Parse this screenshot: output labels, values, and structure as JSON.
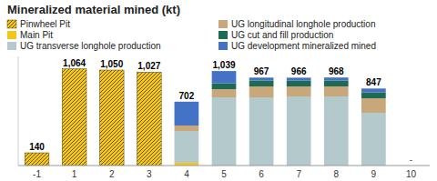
{
  "chart_data": {
    "type": "bar",
    "stacked": true,
    "title": "Mineralized material mined (kt)",
    "categories": [
      "-1",
      "1",
      "2",
      "3",
      "4",
      "5",
      "6",
      "7",
      "8",
      "9",
      "10"
    ],
    "series": [
      {
        "name": "Pinwheel Pit",
        "color": "#f5c518",
        "marker": "hatch",
        "values": [
          140,
          1064,
          1050,
          1027,
          0,
          0,
          0,
          0,
          0,
          0,
          0
        ]
      },
      {
        "name": "Main Pit",
        "color": "#f5c518",
        "values": [
          0,
          0,
          0,
          0,
          30,
          0,
          0,
          0,
          0,
          0,
          0
        ]
      },
      {
        "name": "UG transverse longhole production",
        "color": "#b3c9cc",
        "values": [
          0,
          0,
          0,
          0,
          350,
          750,
          750,
          760,
          760,
          580,
          0
        ]
      },
      {
        "name": "UG longitudinal longhole production",
        "color": "#c8a87a",
        "values": [
          0,
          0,
          0,
          0,
          60,
          90,
          120,
          110,
          110,
          160,
          0
        ]
      },
      {
        "name": "UG cut and fill production",
        "color": "#1e6b55",
        "values": [
          0,
          0,
          0,
          0,
          0,
          65,
          65,
          65,
          65,
          65,
          0
        ]
      },
      {
        "name": "UG development mineralized mined",
        "color": "#4472c4",
        "values": [
          0,
          0,
          0,
          0,
          262,
          134,
          32,
          31,
          33,
          42,
          0
        ]
      }
    ],
    "totals": [
      140,
      1064,
      1050,
      1027,
      702,
      1039,
      967,
      966,
      968,
      847,
      0
    ],
    "total_labels": [
      "140",
      "1,064",
      "1,050",
      "1,027",
      "702",
      "1,039",
      "967",
      "966",
      "968",
      "847",
      "-"
    ],
    "ylim": [
      0,
      1200
    ],
    "tick_labels": "x",
    "grid": false,
    "legend": "upper left"
  }
}
